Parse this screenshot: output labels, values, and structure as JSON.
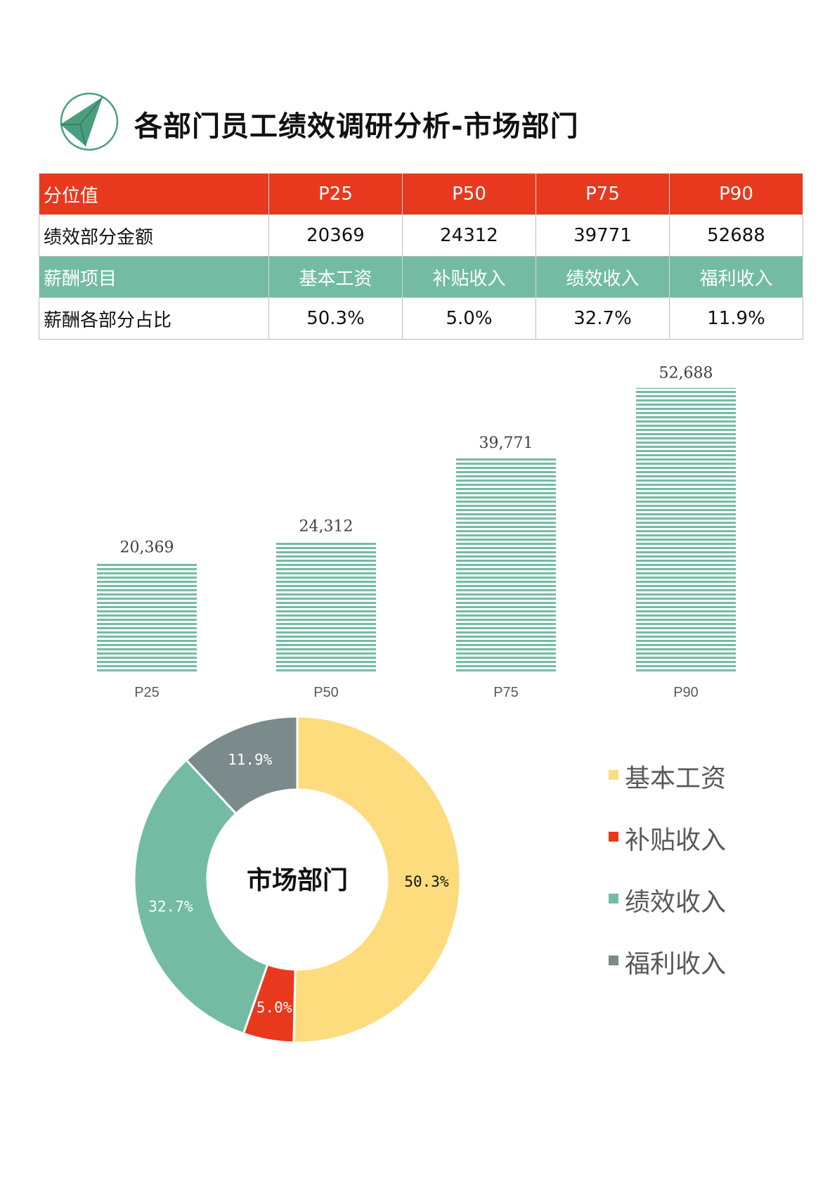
{
  "header": {
    "title": "各部门员工绩效调研分析-市场部门",
    "logo_icon": "triangle-in-circle-icon"
  },
  "colors": {
    "red": "#e8391e",
    "green": "#73bca3",
    "yellow": "#fcdc7c",
    "gray": "#7b8a8b",
    "logo_green": "#4a9e7e"
  },
  "table": {
    "rows": [
      {
        "label": "分位值",
        "cells": [
          "P25",
          "P50",
          "P75",
          "P90"
        ],
        "style": "red"
      },
      {
        "label": "绩效部分金额",
        "cells": [
          "20369",
          "24312",
          "39771",
          "52688"
        ],
        "style": "white"
      },
      {
        "label": "薪酬项目",
        "cells": [
          "基本工资",
          "补贴收入",
          "绩效收入",
          "福利收入"
        ],
        "style": "green"
      },
      {
        "label": "薪酬各部分占比",
        "cells": [
          "50.3%",
          "5.0%",
          "32.7%",
          "11.9%"
        ],
        "style": "white"
      }
    ]
  },
  "chart_data": [
    {
      "type": "bar",
      "categories": [
        "P25",
        "P50",
        "P75",
        "P90"
      ],
      "values": [
        20369,
        24312,
        39771,
        52688
      ],
      "data_labels": [
        "20,369",
        "24,312",
        "39,771",
        "52,688"
      ],
      "title": "",
      "xlabel": "",
      "ylabel": "",
      "ylim": [
        0,
        55000
      ],
      "grid": false,
      "bar_color": "#73bca3",
      "bar_pattern": "horizontal-stripes"
    },
    {
      "type": "pie",
      "donut": true,
      "center_label": "市场部门",
      "categories": [
        "基本工资",
        "补贴收入",
        "绩效收入",
        "福利收入"
      ],
      "values": [
        50.3,
        5.0,
        32.7,
        11.9
      ],
      "data_labels": [
        "50.3%",
        "5.0%",
        "32.7%",
        "11.9%"
      ],
      "colors": [
        "#fcdc7c",
        "#e8391e",
        "#73bca3",
        "#7b8a8b"
      ],
      "legend_position": "right"
    }
  ]
}
